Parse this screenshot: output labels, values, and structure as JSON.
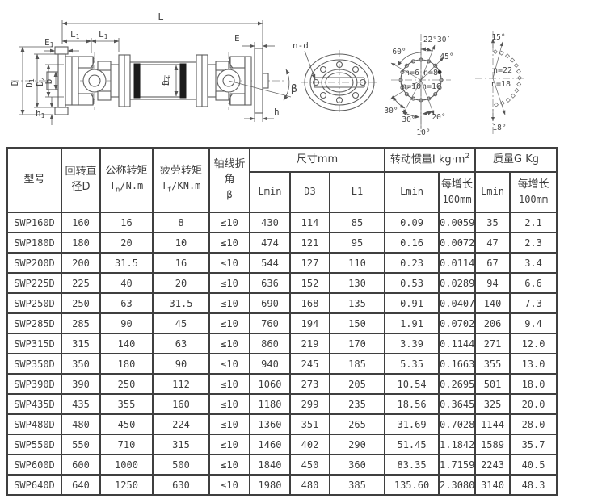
{
  "drawing": {
    "dims": {
      "L": "L",
      "L1a": {
        "main": "L",
        "sub": "1"
      },
      "L1b": {
        "main": "L",
        "sub": "1"
      },
      "E1": {
        "main": "E",
        "sub": "1"
      },
      "E": "E",
      "D": "D",
      "D1": {
        "main": "D",
        "sub": "1"
      },
      "D2": {
        "main": "D",
        "sub": "2"
      },
      "D3": {
        "main": "D",
        "sub": "3"
      },
      "b": "b",
      "h": "h",
      "h1": {
        "main": "h",
        "sub": "1"
      },
      "beta": "β",
      "nd": "n-d"
    },
    "pattern1": {
      "deg2230": "22°30′",
      "deg60": "60°",
      "deg45": "45°",
      "n6": "n=6",
      "n8": "n=8",
      "n10": "n=10",
      "n16": "n=16",
      "deg30a": "30°",
      "deg30b": "30°",
      "deg20": "20°",
      "deg10": "10°"
    },
    "pattern2": {
      "deg15": "15°",
      "n22": "n=22",
      "n18": "n=18",
      "deg18": "18°"
    }
  },
  "table": {
    "headers": {
      "model": "型号",
      "diameter_l1": "回转直",
      "diameter_l2": "径D",
      "nominal_cn": "公称转矩",
      "nominal_t": "T",
      "nominal_sub": "n",
      "nominal_rest": "/N.m",
      "fatigue_cn": "疲劳转矩",
      "fatigue_t": "T",
      "fatigue_sub": "f",
      "fatigue_rest": "/KN.m",
      "angle_cn": "轴线折角",
      "angle_sym": "β",
      "size_group": "尺寸mm",
      "inertia_main": "转动惯量I kg·m",
      "inertia_sup": "2",
      "mass_group": "质量G Kg",
      "lmin_a": "Lmin",
      "d3": "D3",
      "l1": "L1",
      "lmin_b": "Lmin",
      "per100_l1": "每增长",
      "per100_l2": "100mm",
      "lmin_c": "Lmin",
      "per100b_l1": "每增长",
      "per100b_l2": "100mm"
    },
    "rows": [
      [
        "SWP160D",
        "160",
        "16",
        "8",
        "≤10",
        "430",
        "114",
        "85",
        "0.09",
        "0.0059",
        "35",
        "2.1"
      ],
      [
        "SWP180D",
        "180",
        "20",
        "10",
        "≤10",
        "474",
        "121",
        "95",
        "0.16",
        "0.0072",
        "47",
        "2.3"
      ],
      [
        "SWP200D",
        "200",
        "31.5",
        "16",
        "≤10",
        "544",
        "127",
        "110",
        "0.23",
        "0.0114",
        "67",
        "3.4"
      ],
      [
        "SWP225D",
        "225",
        "40",
        "20",
        "≤10",
        "636",
        "152",
        "130",
        "0.53",
        "0.02890",
        "94",
        "6.6"
      ],
      [
        "SWP250D",
        "250",
        "63",
        "31.5",
        "≤10",
        "690",
        "168",
        "135",
        "0.91",
        "0.0407",
        "140",
        "7.3"
      ],
      [
        "SWP285D",
        "285",
        "90",
        "45",
        "≤10",
        "760",
        "194",
        "150",
        "1.91",
        "0.0702",
        "206",
        "9.4"
      ],
      [
        "SWP315D",
        "315",
        "140",
        "63",
        "≤10",
        "860",
        "219",
        "170",
        "3.39",
        "0.1144",
        "271",
        "12.0"
      ],
      [
        "SWP350D",
        "350",
        "180",
        "90",
        "≤10",
        "940",
        "245",
        "185",
        "5.35",
        "0.1663",
        "355",
        "13.0"
      ],
      [
        "SWP390D",
        "390",
        "250",
        "112",
        "≤10",
        "1060",
        "273",
        "205",
        "10.54",
        "0.2695",
        "501",
        "18.0"
      ],
      [
        "SWP435D",
        "435",
        "355",
        "160",
        "≤10",
        "1180",
        "299",
        "235",
        "18.56",
        "0.3645",
        "325",
        "20.0"
      ],
      [
        "SWP480D",
        "480",
        "450",
        "224",
        "≤10",
        "1360",
        "351",
        "265",
        "31.69",
        "0.7028",
        "1144",
        "28.0"
      ],
      [
        "SWP550D",
        "550",
        "710",
        "315",
        "≤10",
        "1460",
        "402",
        "290",
        "51.45",
        "1.1842",
        "1589",
        "35.7"
      ],
      [
        "SWP600D",
        "600",
        "1000",
        "500",
        "≤10",
        "1840",
        "450",
        "360",
        "83.35",
        "1.7159",
        "2243",
        "40.5"
      ],
      [
        "SWP640D",
        "640",
        "1250",
        "630",
        "≤10",
        "1980",
        "480",
        "385",
        "135.60",
        "2.3080",
        "3140",
        "48.3"
      ]
    ]
  },
  "colors": {
    "line": "#5e5e5e",
    "border": "#3f3f3f",
    "text": "#3e3e3e",
    "ring": "#1c1c1c"
  }
}
